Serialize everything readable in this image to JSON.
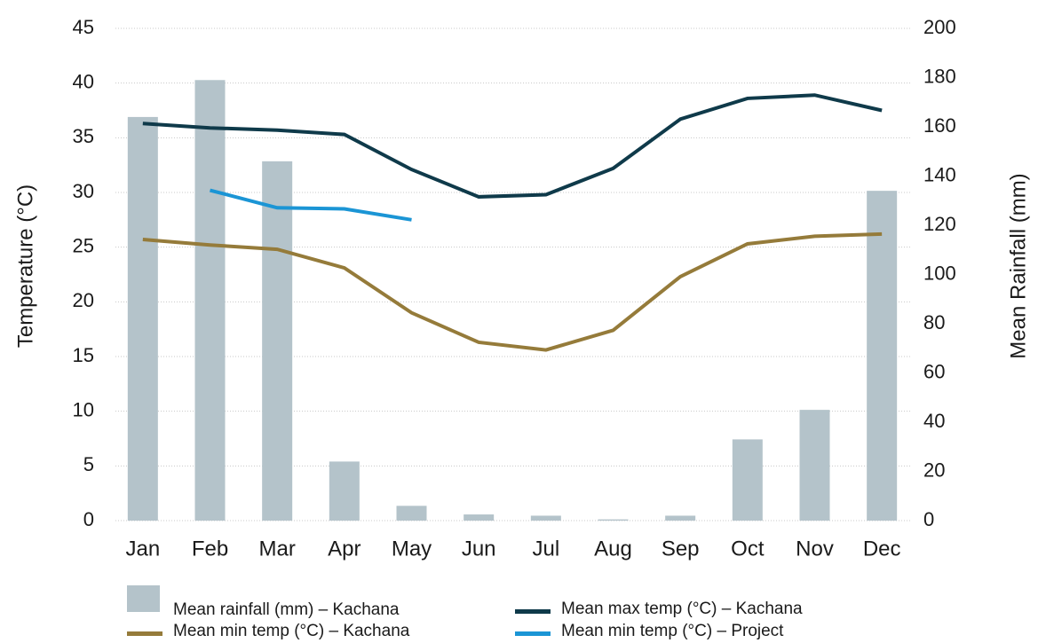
{
  "chart_data": {
    "type": "bar",
    "categories": [
      "Jan",
      "Feb",
      "Mar",
      "Apr",
      "May",
      "Jun",
      "Jul",
      "Aug",
      "Sep",
      "Oct",
      "Nov",
      "Dec"
    ],
    "y_label": "Temperature (°C)",
    "y2_label": "Mean Rainfall (mm)",
    "ylim": [
      0,
      45
    ],
    "yticks": [
      0,
      5,
      10,
      15,
      20,
      25,
      30,
      35,
      40,
      45
    ],
    "y2lim": [
      0,
      200
    ],
    "y2ticks": [
      0,
      20,
      40,
      60,
      80,
      100,
      120,
      140,
      160,
      180,
      200
    ],
    "grid": true,
    "legend": "bottom",
    "series": [
      {
        "name": "Mean rainfall (mm) – Kachana",
        "type": "bar",
        "axis": "y2",
        "color": "#b4c3ca",
        "values": [
          164,
          179,
          146,
          24,
          6,
          2.5,
          2,
          0.5,
          2,
          33,
          45,
          134
        ]
      },
      {
        "name": "Mean max temp (°C) – Kachana",
        "type": "line",
        "color": "#0f3a4a",
        "values": [
          36.3,
          35.9,
          35.7,
          35.3,
          32.1,
          29.6,
          29.8,
          32.2,
          36.7,
          38.6,
          38.9,
          37.5
        ]
      },
      {
        "name": "Mean min temp (°C) – Kachana",
        "type": "line",
        "color": "#957b3a",
        "values": [
          25.7,
          25.2,
          24.8,
          23.1,
          19.0,
          16.3,
          15.6,
          17.4,
          22.3,
          25.3,
          26.0,
          26.2
        ]
      },
      {
        "name": "Mean min temp (°C) – Project",
        "type": "line",
        "color": "#1b95d5",
        "values": [
          null,
          30.2,
          28.6,
          28.5,
          27.5,
          null,
          null,
          null,
          null,
          null,
          null,
          null
        ]
      }
    ]
  }
}
